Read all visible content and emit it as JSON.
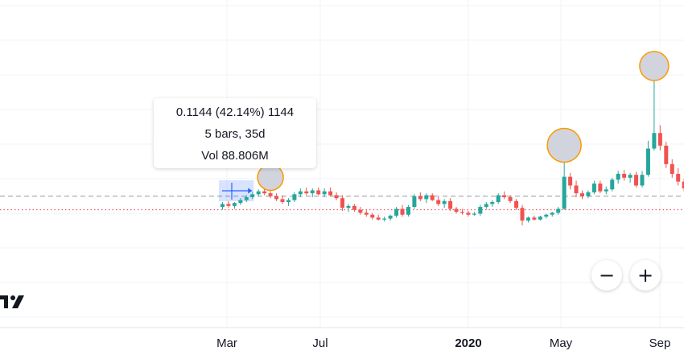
{
  "chart_data": {
    "type": "candlestick",
    "x_ticks": [
      {
        "label": "Mar",
        "bold": false
      },
      {
        "label": "Jul",
        "bold": false
      },
      {
        "label": "2020",
        "bold": true
      },
      {
        "label": "May",
        "bold": false
      },
      {
        "label": "Sep",
        "bold": false
      }
    ],
    "reference_lines": [
      {
        "name": "last-price-line",
        "style": "dashed",
        "color": "#9598a1",
        "value": 0.39
      },
      {
        "name": "base-price-line",
        "style": "dotted",
        "color": "#f23645",
        "value": 0.25
      }
    ],
    "colors": {
      "up": "#26a69a",
      "down": "#ef5350",
      "marker_fill": "#d1d4dc",
      "marker_stroke": "#ff9800",
      "selection": "#2962ff"
    },
    "candles": [
      {
        "o": 0.28,
        "h": 0.33,
        "l": 0.25,
        "c": 0.31
      },
      {
        "o": 0.31,
        "h": 0.34,
        "l": 0.27,
        "c": 0.29
      },
      {
        "o": 0.29,
        "h": 0.33,
        "l": 0.26,
        "c": 0.32
      },
      {
        "o": 0.32,
        "h": 0.37,
        "l": 0.3,
        "c": 0.35
      },
      {
        "o": 0.35,
        "h": 0.4,
        "l": 0.33,
        "c": 0.38
      },
      {
        "o": 0.38,
        "h": 0.43,
        "l": 0.36,
        "c": 0.41
      },
      {
        "o": 0.41,
        "h": 0.46,
        "l": 0.39,
        "c": 0.44
      },
      {
        "o": 0.44,
        "h": 0.48,
        "l": 0.4,
        "c": 0.42
      },
      {
        "o": 0.42,
        "h": 0.45,
        "l": 0.37,
        "c": 0.39
      },
      {
        "o": 0.39,
        "h": 0.42,
        "l": 0.34,
        "c": 0.36
      },
      {
        "o": 0.36,
        "h": 0.4,
        "l": 0.31,
        "c": 0.33
      },
      {
        "o": 0.33,
        "h": 0.37,
        "l": 0.29,
        "c": 0.35
      },
      {
        "o": 0.35,
        "h": 0.43,
        "l": 0.33,
        "c": 0.41
      },
      {
        "o": 0.41,
        "h": 0.47,
        "l": 0.38,
        "c": 0.44
      },
      {
        "o": 0.44,
        "h": 0.48,
        "l": 0.4,
        "c": 0.42
      },
      {
        "o": 0.42,
        "h": 0.47,
        "l": 0.38,
        "c": 0.45
      },
      {
        "o": 0.45,
        "h": 0.48,
        "l": 0.4,
        "c": 0.41
      },
      {
        "o": 0.41,
        "h": 0.47,
        "l": 0.38,
        "c": 0.44
      },
      {
        "o": 0.44,
        "h": 0.48,
        "l": 0.39,
        "c": 0.4
      },
      {
        "o": 0.4,
        "h": 0.43,
        "l": 0.35,
        "c": 0.37
      },
      {
        "o": 0.37,
        "h": 0.4,
        "l": 0.24,
        "c": 0.27
      },
      {
        "o": 0.27,
        "h": 0.31,
        "l": 0.23,
        "c": 0.29
      },
      {
        "o": 0.29,
        "h": 0.31,
        "l": 0.23,
        "c": 0.25
      },
      {
        "o": 0.25,
        "h": 0.28,
        "l": 0.2,
        "c": 0.22
      },
      {
        "o": 0.22,
        "h": 0.25,
        "l": 0.18,
        "c": 0.2
      },
      {
        "o": 0.2,
        "h": 0.22,
        "l": 0.15,
        "c": 0.17
      },
      {
        "o": 0.17,
        "h": 0.2,
        "l": 0.14,
        "c": 0.15
      },
      {
        "o": 0.15,
        "h": 0.18,
        "l": 0.13,
        "c": 0.16
      },
      {
        "o": 0.16,
        "h": 0.2,
        "l": 0.14,
        "c": 0.19
      },
      {
        "o": 0.19,
        "h": 0.28,
        "l": 0.17,
        "c": 0.26
      },
      {
        "o": 0.26,
        "h": 0.3,
        "l": 0.18,
        "c": 0.2
      },
      {
        "o": 0.2,
        "h": 0.3,
        "l": 0.18,
        "c": 0.28
      },
      {
        "o": 0.28,
        "h": 0.41,
        "l": 0.26,
        "c": 0.39
      },
      {
        "o": 0.39,
        "h": 0.43,
        "l": 0.34,
        "c": 0.36
      },
      {
        "o": 0.36,
        "h": 0.42,
        "l": 0.32,
        "c": 0.4
      },
      {
        "o": 0.4,
        "h": 0.42,
        "l": 0.34,
        "c": 0.35
      },
      {
        "o": 0.35,
        "h": 0.38,
        "l": 0.29,
        "c": 0.31
      },
      {
        "o": 0.31,
        "h": 0.36,
        "l": 0.27,
        "c": 0.34
      },
      {
        "o": 0.34,
        "h": 0.37,
        "l": 0.24,
        "c": 0.26
      },
      {
        "o": 0.26,
        "h": 0.28,
        "l": 0.21,
        "c": 0.23
      },
      {
        "o": 0.23,
        "h": 0.26,
        "l": 0.2,
        "c": 0.22
      },
      {
        "o": 0.22,
        "h": 0.24,
        "l": 0.18,
        "c": 0.2
      },
      {
        "o": 0.2,
        "h": 0.23,
        "l": 0.19,
        "c": 0.21
      },
      {
        "o": 0.21,
        "h": 0.3,
        "l": 0.19,
        "c": 0.28
      },
      {
        "o": 0.28,
        "h": 0.33,
        "l": 0.26,
        "c": 0.31
      },
      {
        "o": 0.31,
        "h": 0.35,
        "l": 0.28,
        "c": 0.33
      },
      {
        "o": 0.33,
        "h": 0.42,
        "l": 0.31,
        "c": 0.4
      },
      {
        "o": 0.4,
        "h": 0.44,
        "l": 0.36,
        "c": 0.38
      },
      {
        "o": 0.38,
        "h": 0.4,
        "l": 0.32,
        "c": 0.34
      },
      {
        "o": 0.34,
        "h": 0.36,
        "l": 0.25,
        "c": 0.27
      },
      {
        "o": 0.27,
        "h": 0.3,
        "l": 0.09,
        "c": 0.14
      },
      {
        "o": 0.14,
        "h": 0.18,
        "l": 0.12,
        "c": 0.17
      },
      {
        "o": 0.17,
        "h": 0.19,
        "l": 0.14,
        "c": 0.15
      },
      {
        "o": 0.15,
        "h": 0.19,
        "l": 0.14,
        "c": 0.18
      },
      {
        "o": 0.18,
        "h": 0.21,
        "l": 0.16,
        "c": 0.2
      },
      {
        "o": 0.2,
        "h": 0.23,
        "l": 0.18,
        "c": 0.22
      },
      {
        "o": 0.22,
        "h": 0.28,
        "l": 0.2,
        "c": 0.26
      },
      {
        "o": 0.26,
        "h": 0.74,
        "l": 0.25,
        "c": 0.59
      },
      {
        "o": 0.59,
        "h": 0.63,
        "l": 0.46,
        "c": 0.5
      },
      {
        "o": 0.5,
        "h": 0.55,
        "l": 0.38,
        "c": 0.42
      },
      {
        "o": 0.42,
        "h": 0.45,
        "l": 0.36,
        "c": 0.39
      },
      {
        "o": 0.39,
        "h": 0.45,
        "l": 0.37,
        "c": 0.43
      },
      {
        "o": 0.43,
        "h": 0.55,
        "l": 0.41,
        "c": 0.52
      },
      {
        "o": 0.52,
        "h": 0.55,
        "l": 0.42,
        "c": 0.44
      },
      {
        "o": 0.44,
        "h": 0.49,
        "l": 0.41,
        "c": 0.46
      },
      {
        "o": 0.46,
        "h": 0.58,
        "l": 0.44,
        "c": 0.56
      },
      {
        "o": 0.56,
        "h": 0.65,
        "l": 0.52,
        "c": 0.62
      },
      {
        "o": 0.62,
        "h": 0.66,
        "l": 0.55,
        "c": 0.58
      },
      {
        "o": 0.58,
        "h": 0.63,
        "l": 0.53,
        "c": 0.61
      },
      {
        "o": 0.61,
        "h": 0.64,
        "l": 0.48,
        "c": 0.5
      },
      {
        "o": 0.5,
        "h": 0.65,
        "l": 0.48,
        "c": 0.61
      },
      {
        "o": 0.61,
        "h": 0.96,
        "l": 0.59,
        "c": 0.88
      },
      {
        "o": 0.88,
        "h": 1.58,
        "l": 0.86,
        "c": 1.04
      },
      {
        "o": 1.04,
        "h": 1.12,
        "l": 0.86,
        "c": 0.91
      },
      {
        "o": 0.91,
        "h": 0.95,
        "l": 0.68,
        "c": 0.72
      },
      {
        "o": 0.72,
        "h": 0.77,
        "l": 0.58,
        "c": 0.62
      },
      {
        "o": 0.62,
        "h": 0.68,
        "l": 0.5,
        "c": 0.54
      },
      {
        "o": 0.54,
        "h": 0.57,
        "l": 0.44,
        "c": 0.47
      },
      {
        "o": 0.47,
        "h": 0.53,
        "l": 0.4,
        "c": 0.5
      },
      {
        "o": 0.5,
        "h": 0.52,
        "l": 0.41,
        "c": 0.45
      }
    ],
    "markers": [
      {
        "candle": 8,
        "size": "small"
      },
      {
        "candle": 57,
        "size": "large"
      },
      {
        "candle": 72,
        "size": "medium"
      }
    ],
    "selection_range": [
      0,
      5
    ],
    "tooltip": {
      "line1": "0.1144 (42.14%) 1144",
      "line2": "5 bars, 35d",
      "line3": "Vol 88.806M"
    }
  },
  "controls": {
    "zoom_out_label": "−",
    "zoom_in_label": "+"
  }
}
